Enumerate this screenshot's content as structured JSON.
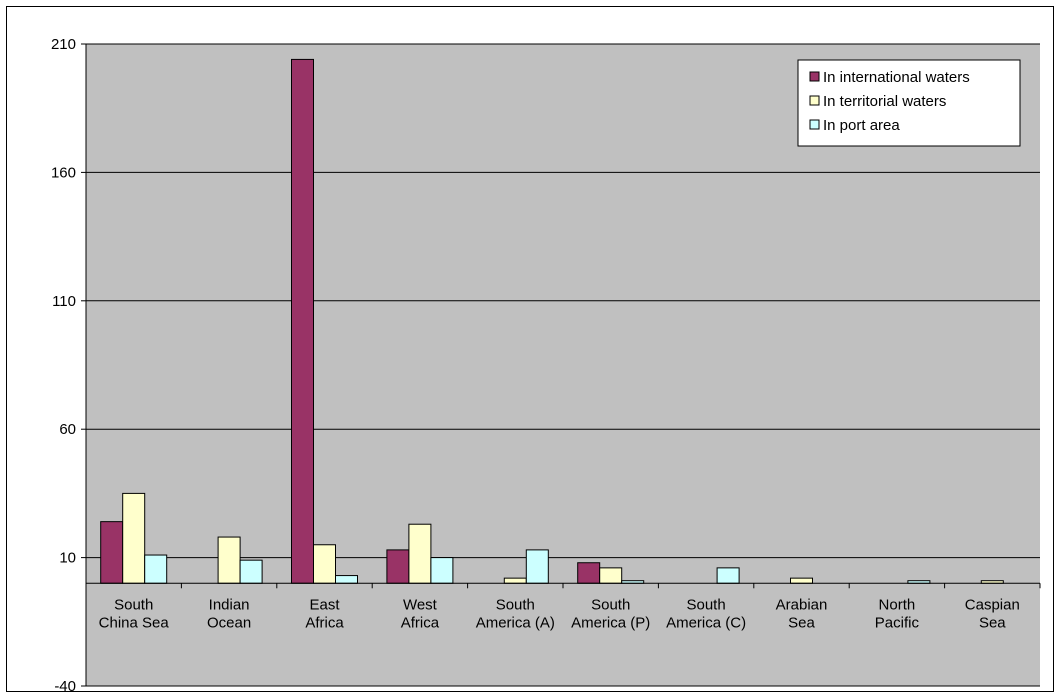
{
  "colors": {
    "plot_background": "#c0c0c0",
    "gridline": "#000000",
    "axis": "#000000",
    "series": [
      "#993366",
      "#ffffcc",
      "#ccffff"
    ]
  },
  "chart_data": {
    "type": "bar",
    "title": "",
    "xlabel": "",
    "ylabel": "",
    "ylim": [
      -40,
      210
    ],
    "yticks": [
      -40,
      10,
      60,
      110,
      160,
      210
    ],
    "ytick_labels": [
      "-40",
      "10",
      "60",
      "110",
      "160",
      "210"
    ],
    "grid": true,
    "legend_position": "top-right",
    "categories": [
      [
        "South",
        "China Sea"
      ],
      [
        "Indian",
        "Ocean"
      ],
      [
        "East",
        "Africa"
      ],
      [
        "West",
        "Africa"
      ],
      [
        "South",
        "America (A)"
      ],
      [
        "South",
        "America (P)"
      ],
      [
        "South",
        "America (C)"
      ],
      [
        "Arabian",
        "Sea"
      ],
      [
        "North",
        "Pacific"
      ],
      [
        "Caspian",
        "Sea"
      ]
    ],
    "series": [
      {
        "name": "In international waters",
        "values": [
          24,
          0,
          204,
          13,
          0,
          8,
          0,
          0,
          0,
          0
        ]
      },
      {
        "name": "In territorial waters",
        "values": [
          35,
          18,
          15,
          23,
          2,
          6,
          0,
          2,
          0,
          1
        ]
      },
      {
        "name": "In port area",
        "values": [
          11,
          9,
          3,
          10,
          13,
          1,
          6,
          0,
          1,
          0
        ]
      }
    ]
  }
}
